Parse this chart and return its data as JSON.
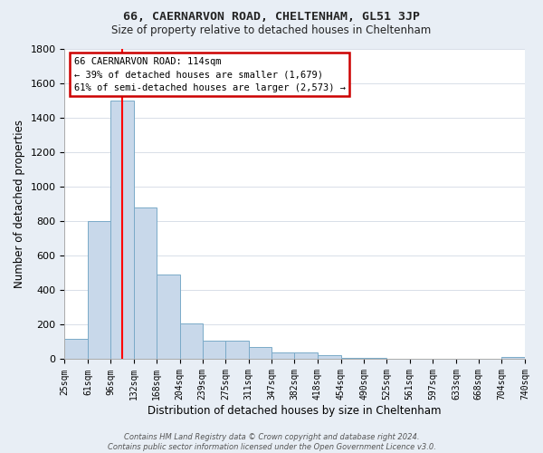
{
  "title1": "66, CAERNARVON ROAD, CHELTENHAM, GL51 3JP",
  "title2": "Size of property relative to detached houses in Cheltenham",
  "xlabel": "Distribution of detached houses by size in Cheltenham",
  "ylabel": "Number of detached properties",
  "footnote": "Contains HM Land Registry data © Crown copyright and database right 2024.\nContains public sector information licensed under the Open Government Licence v3.0.",
  "bin_edges": [
    25,
    61,
    96,
    132,
    168,
    204,
    239,
    275,
    311,
    347,
    382,
    418,
    454,
    490,
    525,
    561,
    597,
    633,
    668,
    704,
    740
  ],
  "bar_heights": [
    120,
    800,
    1500,
    880,
    490,
    205,
    110,
    110,
    70,
    38,
    38,
    25,
    10,
    10,
    5,
    5,
    2,
    2,
    1,
    15
  ],
  "bar_color": "#c8d8ea",
  "bar_edge_color": "#7aaac8",
  "plot_bg_color": "#ffffff",
  "fig_bg_color": "#e8eef5",
  "grid_color": "#d8dee8",
  "red_line_x": 114,
  "annotation_line1": "66 CAERNARVON ROAD: 114sqm",
  "annotation_line2": "← 39% of detached houses are smaller (1,679)",
  "annotation_line3": "61% of semi-detached houses are larger (2,573) →",
  "annotation_box_color": "#ffffff",
  "annotation_box_edge_color": "#cc0000",
  "ylim": [
    0,
    1800
  ],
  "yticks": [
    0,
    200,
    400,
    600,
    800,
    1000,
    1200,
    1400,
    1600,
    1800
  ]
}
